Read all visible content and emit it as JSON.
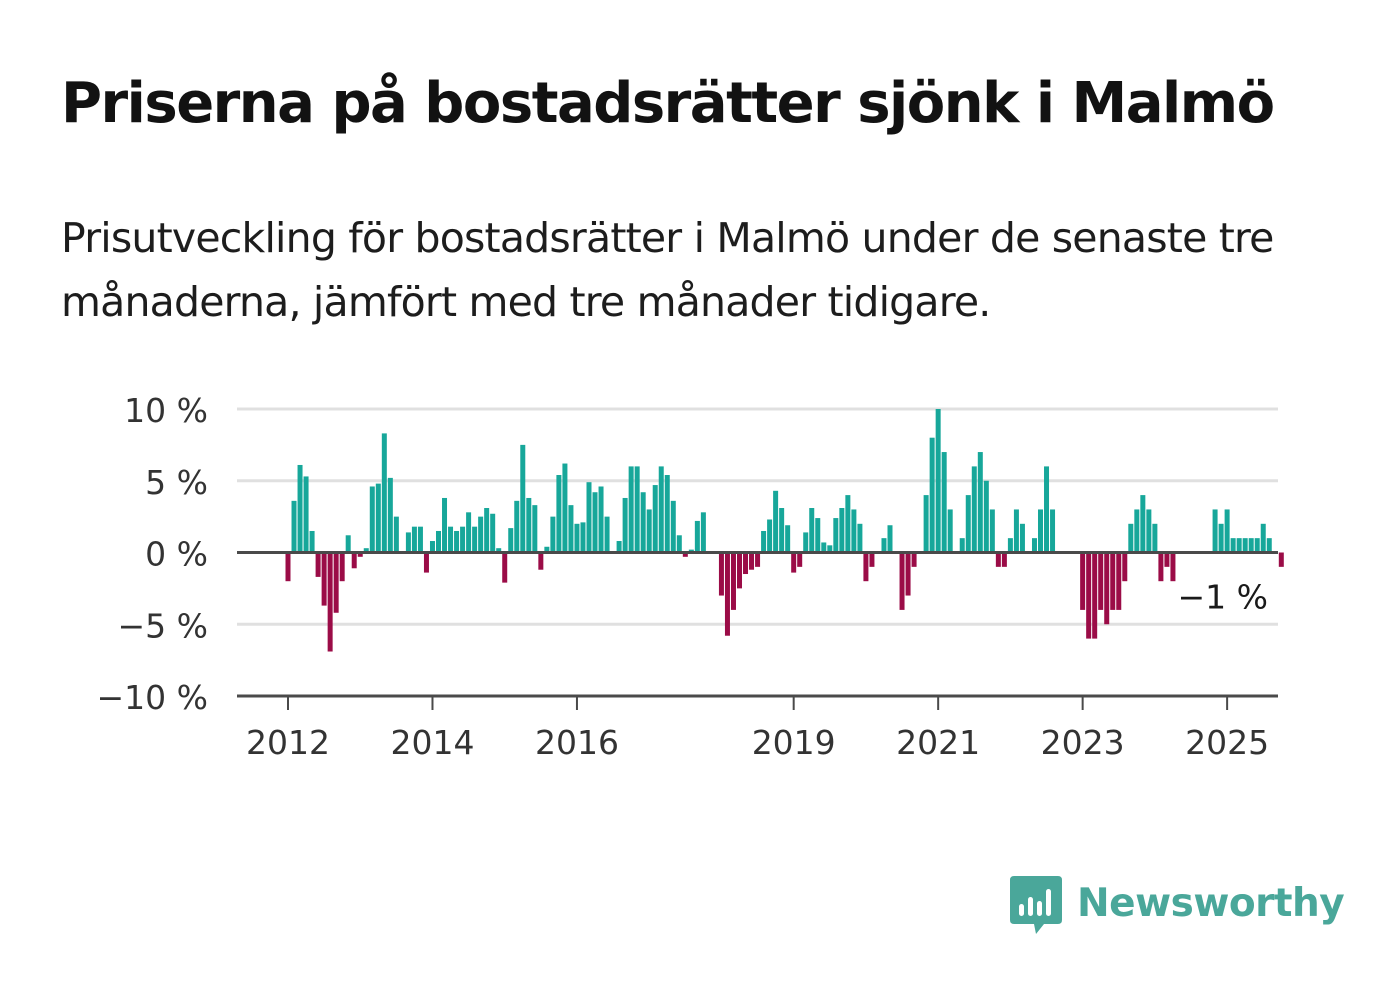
{
  "chart_data": {
    "type": "bar",
    "title": "Priserna på bostadsrätter sjönk i Malmö",
    "subtitle": "Prisutveckling för bostadsrätter i Malmö under de senaste tre månaderna, jämfört med tre månader tidigare.",
    "ylim": [
      -10,
      10
    ],
    "yticks": [
      {
        "value": 10,
        "label": "10 %"
      },
      {
        "value": 5,
        "label": "5 %"
      },
      {
        "value": 0,
        "label": "0 %"
      },
      {
        "value": -5,
        "label": "−5 %"
      },
      {
        "value": -10,
        "label": "−10 %"
      }
    ],
    "xticks": [
      "2012",
      "2014",
      "2016",
      "2019",
      "2021",
      "2023",
      "2025"
    ],
    "grid": true,
    "start": "2012-01",
    "frequency": "monthly",
    "values": [
      -2,
      3.6,
      6.1,
      5.3,
      1.5,
      -1.7,
      -3.7,
      -6.9,
      -4.2,
      -2,
      1.2,
      -1.1,
      -0.3,
      0.3,
      4.6,
      4.8,
      8.3,
      5.2,
      2.5,
      0,
      1.4,
      1.8,
      1.8,
      -1.4,
      0.8,
      1.5,
      3.8,
      1.8,
      1.5,
      1.8,
      2.8,
      1.8,
      2.5,
      3.1,
      2.7,
      0.3,
      -2.1,
      1.7,
      3.6,
      7.5,
      3.8,
      3.3,
      -1.2,
      0.4,
      2.5,
      5.4,
      6.2,
      3.3,
      2,
      2.1,
      4.9,
      4.2,
      4.6,
      2.5,
      0,
      0.8,
      3.8,
      6,
      6,
      4.2,
      3,
      4.7,
      6,
      5.4,
      3.6,
      1.2,
      -0.3,
      0.2,
      2.2,
      2.8,
      0,
      0,
      -3,
      -5.8,
      -4,
      -2.5,
      -1.5,
      -1.2,
      -1,
      1.5,
      2.3,
      4.3,
      3.1,
      1.9,
      -1.4,
      -1,
      1.4,
      3.1,
      2.4,
      0.7,
      0.5,
      2.4,
      3.1,
      4,
      3,
      2,
      -2,
      -1,
      0,
      1,
      1.9,
      0,
      -4,
      -3,
      -1,
      0,
      4,
      8,
      10,
      7,
      3,
      0,
      1,
      4,
      6,
      7,
      5,
      3,
      -1,
      -1,
      1,
      3,
      2,
      0,
      1,
      3,
      6,
      3,
      0,
      0,
      0,
      0,
      -4,
      -6,
      -6,
      -4,
      -5,
      -4,
      -4,
      -2,
      2,
      3,
      4,
      3,
      2,
      -2,
      -1,
      -2,
      0,
      0,
      0,
      0,
      0,
      0,
      3,
      2,
      3,
      1,
      1,
      1,
      1,
      1,
      2,
      1,
      0,
      -1
    ],
    "last_value_label": "−1 %",
    "positive_color": "#17a79a",
    "negative_color": "#9b0c47",
    "gridline_color": "#e0e0e0",
    "axis_color": "#4a4a4a"
  },
  "brand": {
    "name": "Newsworthy",
    "color": "#4aa79a",
    "icon": "bar-chart-speech-bubble-icon"
  }
}
